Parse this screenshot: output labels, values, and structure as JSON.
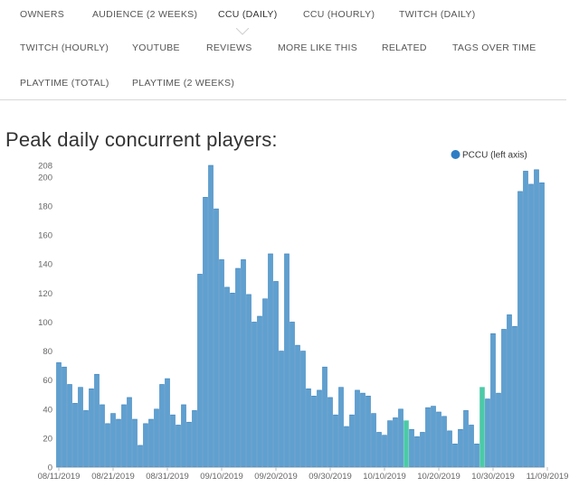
{
  "tabs": [
    {
      "label": "OWNERS",
      "active": false
    },
    {
      "label": "AUDIENCE (2 WEEKS)",
      "active": false
    },
    {
      "label": "CCU (DAILY)",
      "active": true
    },
    {
      "label": "CCU (HOURLY)",
      "active": false
    },
    {
      "label": "TWITCH (DAILY)",
      "active": false
    },
    {
      "label": "TWITCH (HOURLY)",
      "active": false
    },
    {
      "label": "YOUTUBE",
      "active": false
    },
    {
      "label": "REVIEWS",
      "active": false
    },
    {
      "label": "MORE LIKE THIS",
      "active": false
    },
    {
      "label": "RELATED",
      "active": false
    },
    {
      "label": "TAGS OVER TIME",
      "active": false
    },
    {
      "label": "PLAYTIME (TOTAL)",
      "active": false
    },
    {
      "label": "PLAYTIME (2 WEEKS)",
      "active": false
    }
  ],
  "heading": "Peak daily concurrent players:",
  "chart_data": {
    "type": "bar",
    "legend": {
      "label": "PCCU (left axis)",
      "position": "top-right"
    },
    "colors": {
      "bar": "#5fa0d0",
      "bar_edge": "#3f84bd",
      "highlight": "#4ccaa8",
      "legend_dot": "#2f7ec4"
    },
    "y_ticks": [
      0,
      20,
      40,
      60,
      80,
      100,
      120,
      140,
      160,
      180,
      200,
      208
    ],
    "ylim": [
      0,
      208
    ],
    "x_tick_labels": [
      "08/11/2019",
      "08/21/2019",
      "08/31/2019",
      "09/10/2019",
      "09/20/2019",
      "09/30/2019",
      "10/10/2019",
      "10/20/2019",
      "10/30/2019",
      "11/09/2019"
    ],
    "x_tick_days": [
      0,
      10,
      20,
      30,
      40,
      50,
      60,
      70,
      80,
      90
    ],
    "start_label": "08/11/2019",
    "highlight_indices": [
      64,
      78
    ],
    "values": [
      72,
      69,
      57,
      44,
      55,
      39,
      54,
      64,
      43,
      30,
      37,
      33,
      43,
      48,
      33,
      15,
      30,
      33,
      40,
      57,
      61,
      36,
      29,
      43,
      31,
      39,
      133,
      186,
      208,
      178,
      143,
      124,
      120,
      137,
      143,
      119,
      100,
      104,
      116,
      147,
      128,
      80,
      147,
      100,
      84,
      80,
      54,
      49,
      53,
      69,
      48,
      36,
      55,
      28,
      36,
      53,
      51,
      49,
      37,
      24,
      22,
      32,
      34,
      40,
      32,
      26,
      21,
      24,
      41,
      42,
      38,
      35,
      25,
      16,
      26,
      39,
      29,
      16,
      55,
      47,
      92,
      51,
      95,
      105,
      97,
      190,
      204,
      195,
      205,
      196
    ]
  }
}
